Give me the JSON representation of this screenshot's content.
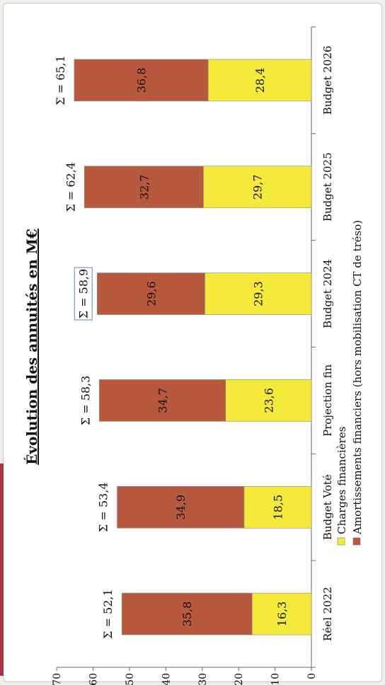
{
  "chart_data": {
    "type": "bar",
    "stacked": true,
    "orientation": "rotated-90",
    "title": "Évolution des annuités en M€",
    "categories": [
      "Réel 2022",
      "Budget Voté",
      "Projection fin",
      "Budget 2024",
      "Budget 2025",
      "Budget 2026"
    ],
    "series": [
      {
        "name": "Charges financières",
        "color": "#f5e93a",
        "values": [
          16.3,
          18.5,
          23.6,
          29.3,
          29.7,
          28.4
        ],
        "value_labels": [
          "16,3",
          "18,5",
          "23,6",
          "29,3",
          "29,7",
          "28,4"
        ]
      },
      {
        "name": "Amortissements financiers (hors mobilisation CT de tréso)",
        "color": "#b8593e",
        "values": [
          35.8,
          34.9,
          34.7,
          29.6,
          32.7,
          36.8
        ],
        "value_labels": [
          "35,8",
          "34,9",
          "34,7",
          "29,6",
          "32,7",
          "36,8"
        ]
      }
    ],
    "totals": [
      "Σ = 52,1",
      "Σ = 53,4",
      "Σ = 58,3",
      "Σ = 58,9",
      "Σ = 62,4",
      "Σ = 65,1"
    ],
    "highlighted_total": 3,
    "ylim": [
      0,
      70
    ],
    "yticks": [
      0,
      10,
      20,
      30,
      40,
      50,
      60,
      70
    ],
    "legend_position": "bottom"
  }
}
